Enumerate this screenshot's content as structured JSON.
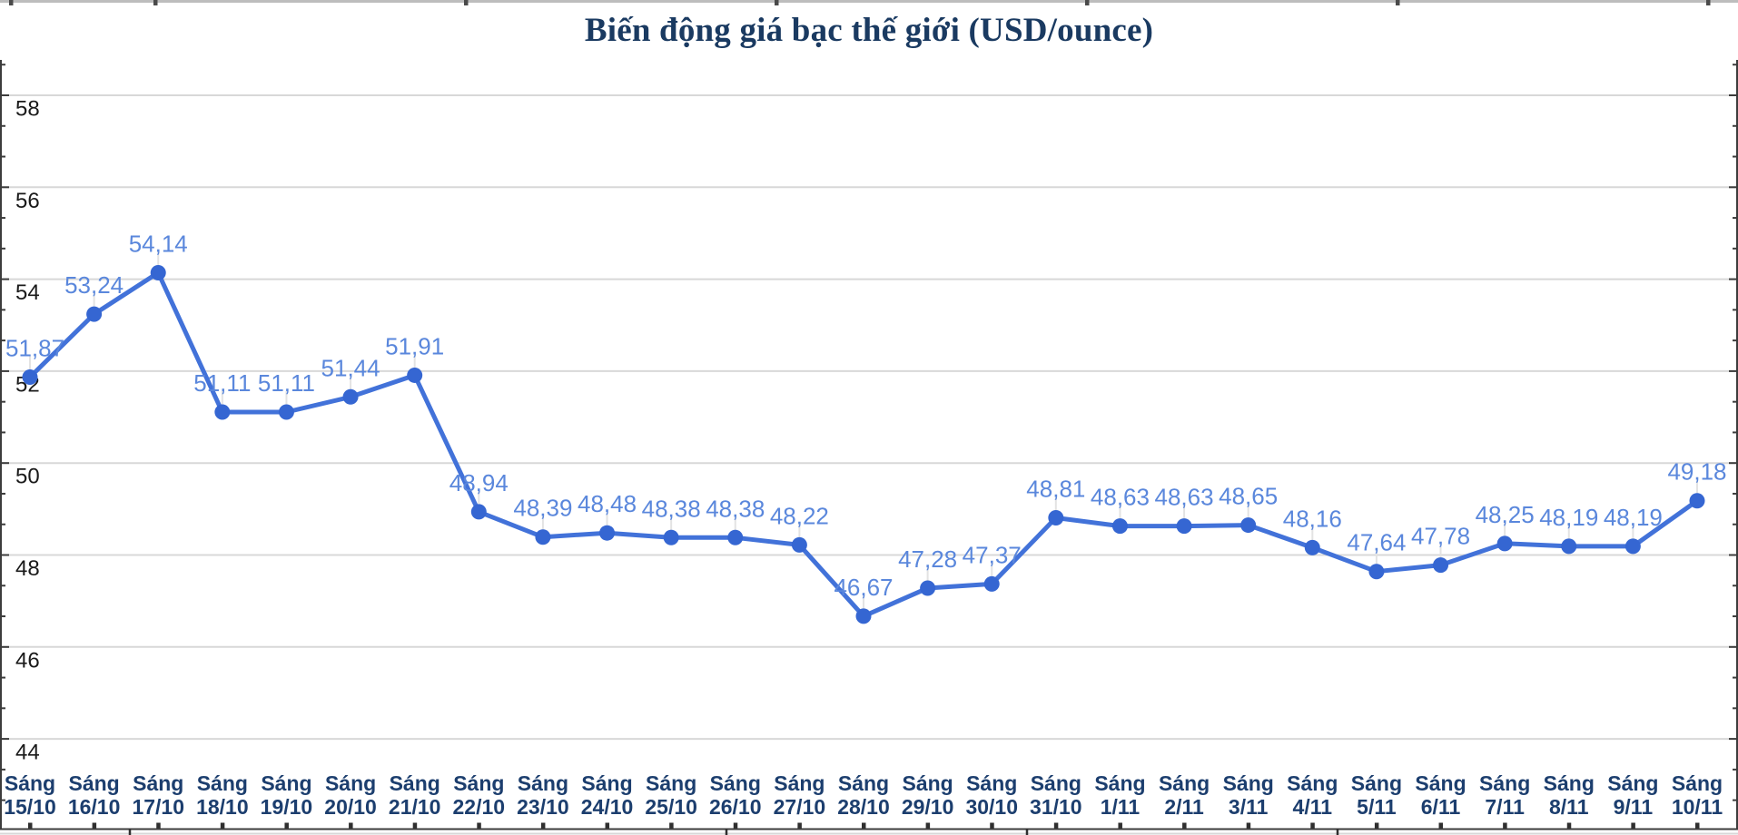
{
  "chart_data": {
    "type": "line",
    "title": "Biến động giá bạc thế giới (USD/ounce)",
    "x_tick_prefix": "Sáng",
    "categories": [
      "15/10",
      "16/10",
      "17/10",
      "18/10",
      "19/10",
      "20/10",
      "21/10",
      "22/10",
      "23/10",
      "24/10",
      "25/10",
      "26/10",
      "27/10",
      "28/10",
      "29/10",
      "30/10",
      "31/10",
      "1/11",
      "2/11",
      "3/11",
      "4/11",
      "5/11",
      "6/11",
      "7/11",
      "8/11",
      "9/11",
      "10/11"
    ],
    "values": [
      51.87,
      53.24,
      54.14,
      51.11,
      51.11,
      51.44,
      51.91,
      48.94,
      48.39,
      48.48,
      48.38,
      48.38,
      48.22,
      46.67,
      47.28,
      47.37,
      48.81,
      48.63,
      48.63,
      48.65,
      48.16,
      47.64,
      47.78,
      48.25,
      48.19,
      48.19,
      49.18
    ],
    "point_labels": [
      "51,87",
      "53,24",
      "54,14",
      "51,11",
      "51,11",
      "51,44",
      "51,91",
      "48,94",
      "48,39",
      "48,48",
      "48,38",
      "48,38",
      "48,22",
      "46,67",
      "47,28",
      "47,37",
      "48,81",
      "48,63",
      "48,63",
      "48,65",
      "48,16",
      "47,64",
      "47,78",
      "48,25",
      "48,19",
      "48,19",
      "49,18"
    ],
    "y_ticks": [
      58,
      56,
      54,
      52,
      50,
      48,
      46,
      44
    ],
    "y_tick_labels": [
      "58",
      "56",
      "54",
      "52",
      "50",
      "48",
      "46",
      "44"
    ],
    "ylim": [
      43.3,
      58.7
    ],
    "grid": true,
    "legend": "none",
    "series_color": "#4272d9",
    "point_color": "#3566d2",
    "label_color": "#5a87dc"
  }
}
